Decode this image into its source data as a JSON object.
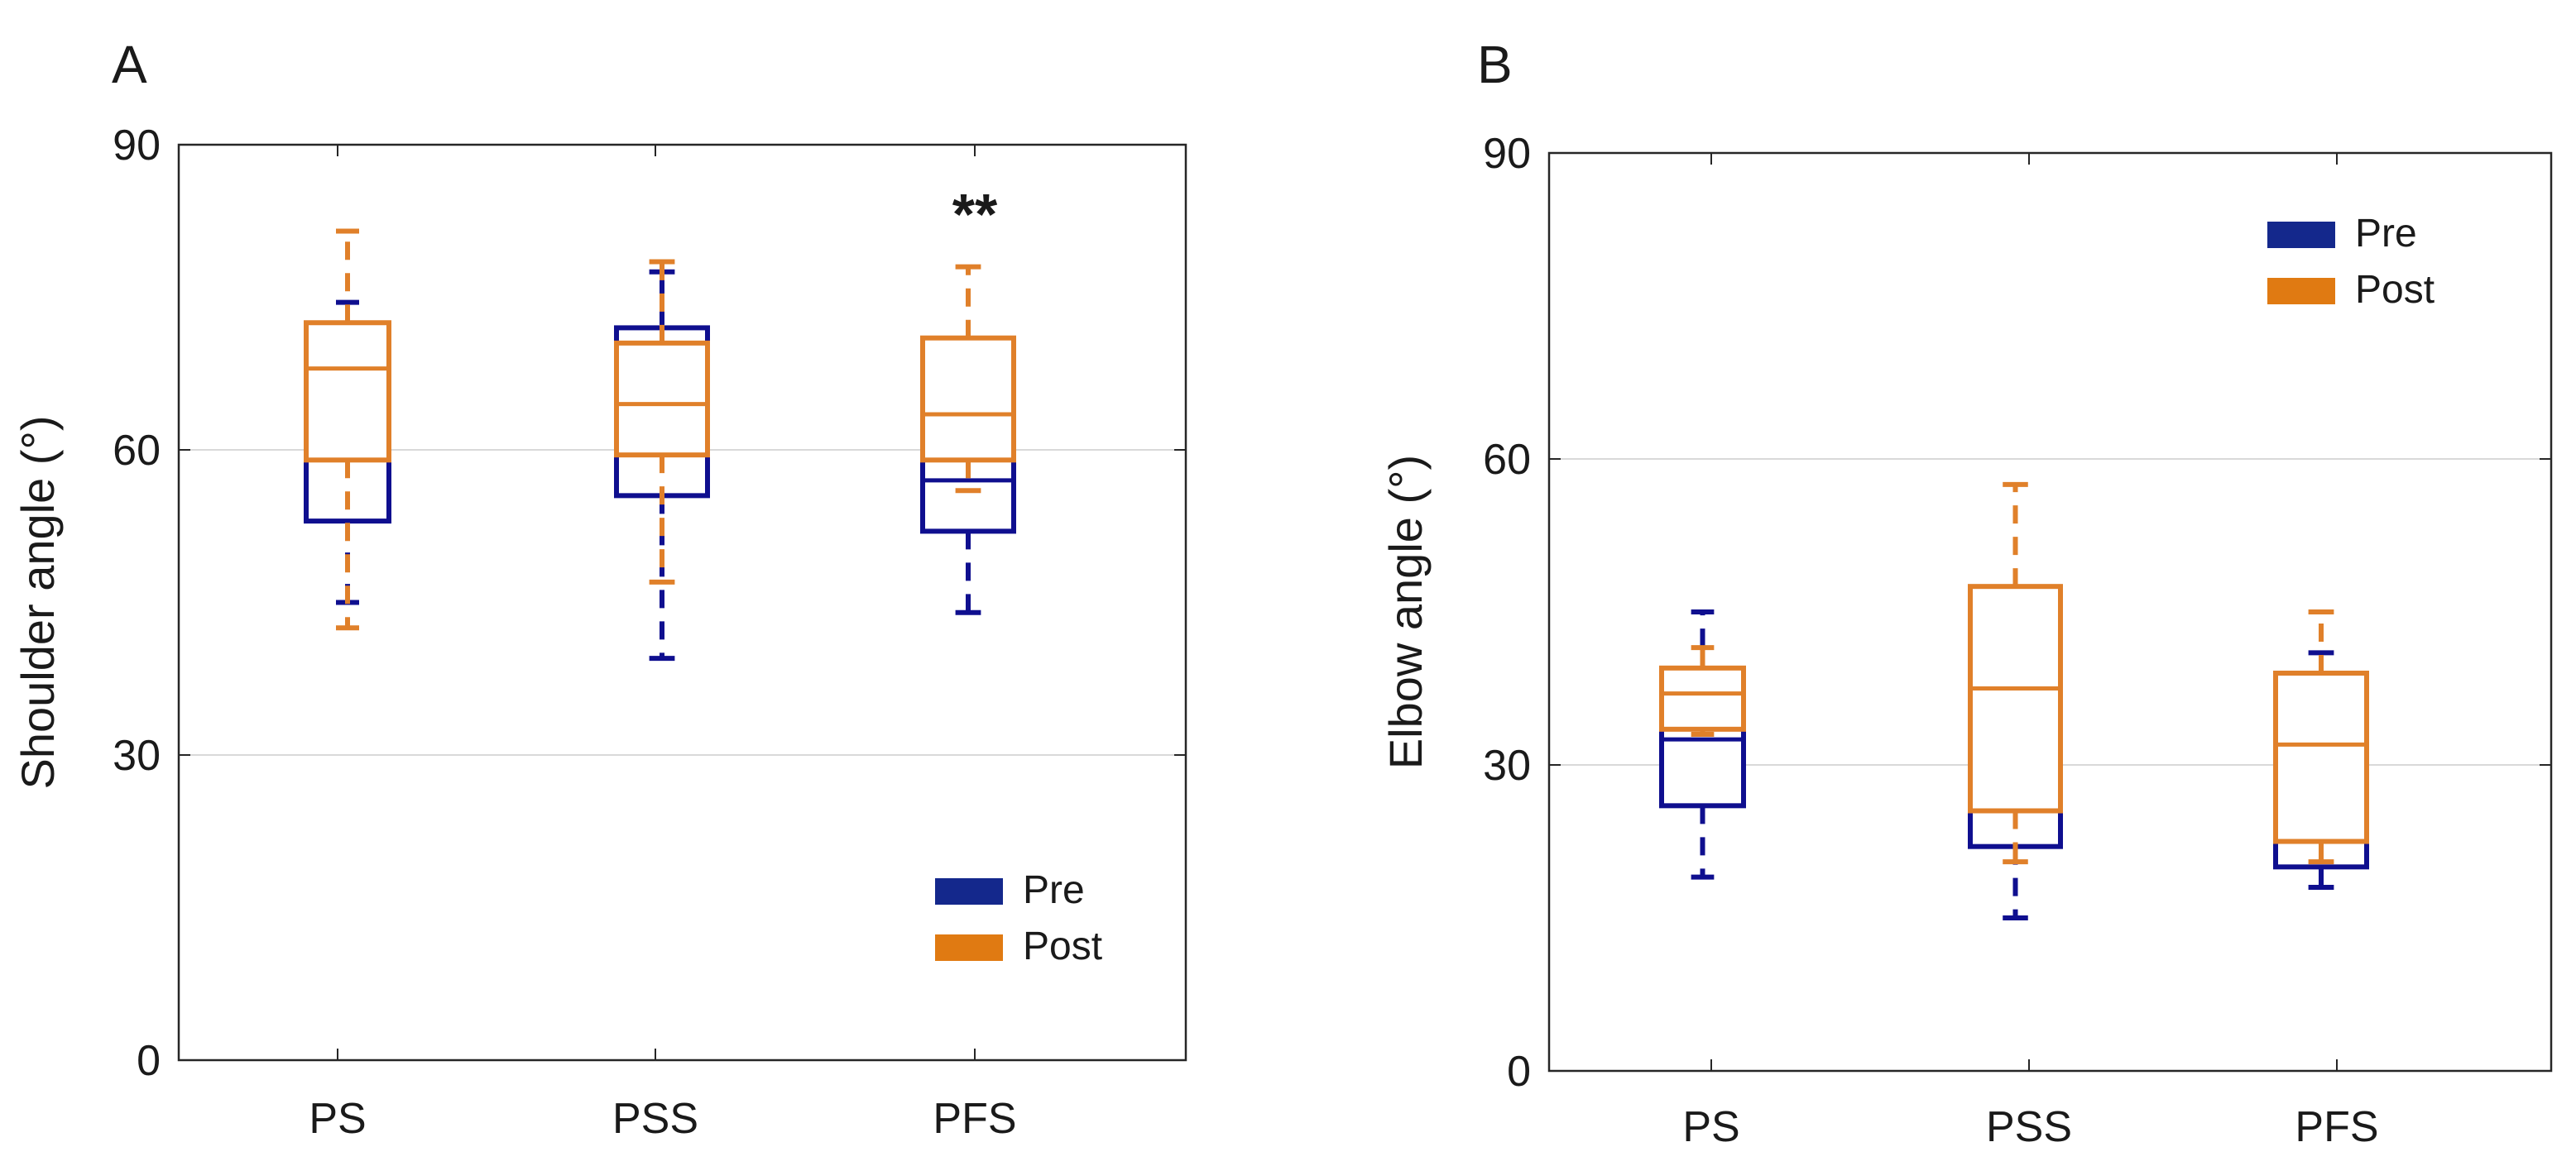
{
  "colors": {
    "pre": "#0f0f8f",
    "post": "#e0802a",
    "legend_pre": "#14288c",
    "legend_post": "#e07a12",
    "grid": "#d9d9d9",
    "axis": "#262626"
  },
  "chart_data": [
    {
      "panel": "A",
      "type": "box",
      "ylabel": "Shoulder angle (°)",
      "ylim": [
        0,
        90
      ],
      "yticks": [
        "0",
        "30",
        "60",
        "90"
      ],
      "categories": [
        "PS",
        "PSS",
        "PFS"
      ],
      "legend": {
        "position": "bottom-right",
        "entries": [
          "Pre",
          "Post"
        ]
      },
      "annotations": [
        {
          "category": "PFS",
          "text": "**"
        }
      ],
      "series": [
        {
          "name": "Pre",
          "boxes": [
            {
              "whisker_low": 45,
              "q1": 53,
              "median": 59.5,
              "q3": 64,
              "whisker_high": 74.5
            },
            {
              "whisker_low": 39.5,
              "q1": 55.5,
              "median": 62,
              "q3": 72,
              "whisker_high": 77.5
            },
            {
              "whisker_low": 44,
              "q1": 52,
              "median": 57,
              "q3": 64,
              "whisker_high": 66.5
            }
          ]
        },
        {
          "name": "Post",
          "boxes": [
            {
              "whisker_low": 42.5,
              "q1": 59,
              "median": 68,
              "q3": 72.5,
              "whisker_high": 81.5
            },
            {
              "whisker_low": 47,
              "q1": 59.5,
              "median": 64.5,
              "q3": 70.5,
              "whisker_high": 78.5
            },
            {
              "whisker_low": 56,
              "q1": 59,
              "median": 63.5,
              "q3": 71,
              "whisker_high": 78
            }
          ]
        }
      ]
    },
    {
      "panel": "B",
      "type": "box",
      "ylabel": "Elbow angle (°)",
      "ylim": [
        0,
        90
      ],
      "yticks": [
        "0",
        "30",
        "60",
        "90"
      ],
      "categories": [
        "PS",
        "PSS",
        "PFS"
      ],
      "legend": {
        "position": "top-right",
        "entries": [
          "Pre",
          "Post"
        ]
      },
      "annotations": [],
      "series": [
        {
          "name": "Pre",
          "boxes": [
            {
              "whisker_low": 19,
              "q1": 26,
              "median": 32.5,
              "q3": 38.5,
              "whisker_high": 45
            },
            {
              "whisker_low": 15,
              "q1": 22,
              "median": 34,
              "q3": 41,
              "whisker_high": 46.5
            },
            {
              "whisker_low": 18,
              "q1": 20,
              "median": 26,
              "q3": 32,
              "whisker_high": 41
            }
          ]
        },
        {
          "name": "Post",
          "boxes": [
            {
              "whisker_low": 33,
              "q1": 33.5,
              "median": 37,
              "q3": 39.5,
              "whisker_high": 41.5
            },
            {
              "whisker_low": 20.5,
              "q1": 25.5,
              "median": 37.5,
              "q3": 47.5,
              "whisker_high": 57.5
            },
            {
              "whisker_low": 20.5,
              "q1": 22.5,
              "median": 32,
              "q3": 39,
              "whisker_high": 45
            }
          ]
        }
      ]
    }
  ]
}
